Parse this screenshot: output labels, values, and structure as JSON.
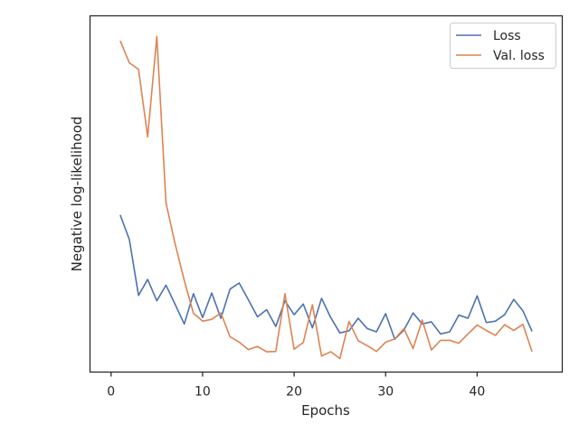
{
  "chart_data": {
    "type": "line",
    "title": "",
    "xlabel": "Epochs",
    "ylabel": "Negative log-likelihood",
    "xlim": [
      -2.3,
      49.3
    ],
    "ylim": [
      0,
      1
    ],
    "xticks": [
      0,
      10,
      20,
      30,
      40
    ],
    "yticks": [],
    "grid": false,
    "legend_position": "top-right",
    "x": [
      1,
      2,
      3,
      4,
      5,
      6,
      7,
      8,
      9,
      10,
      11,
      12,
      13,
      14,
      15,
      16,
      17,
      18,
      19,
      20,
      21,
      22,
      23,
      24,
      25,
      26,
      27,
      28,
      29,
      30,
      31,
      32,
      33,
      34,
      35,
      36,
      37,
      38,
      39,
      40,
      41,
      42,
      43,
      44,
      45,
      46
    ],
    "series": [
      {
        "name": "Loss",
        "color": "#4c72b0",
        "values": [
          0.441,
          0.372,
          0.215,
          0.26,
          0.2,
          0.244,
          0.19,
          0.135,
          0.22,
          0.153,
          0.222,
          0.151,
          0.233,
          0.25,
          0.203,
          0.155,
          0.175,
          0.128,
          0.2,
          0.161,
          0.191,
          0.124,
          0.207,
          0.153,
          0.11,
          0.116,
          0.151,
          0.122,
          0.113,
          0.164,
          0.092,
          0.118,
          0.166,
          0.135,
          0.141,
          0.107,
          0.113,
          0.16,
          0.151,
          0.214,
          0.139,
          0.143,
          0.161,
          0.204,
          0.172,
          0.114
        ]
      },
      {
        "name": "Val. loss",
        "color": "#dd8452",
        "values": [
          0.93,
          0.868,
          0.85,
          0.66,
          0.942,
          0.475,
          0.36,
          0.257,
          0.165,
          0.143,
          0.148,
          0.166,
          0.099,
          0.084,
          0.063,
          0.072,
          0.057,
          0.058,
          0.22,
          0.064,
          0.083,
          0.189,
          0.045,
          0.057,
          0.038,
          0.142,
          0.088,
          0.074,
          0.058,
          0.084,
          0.093,
          0.122,
          0.066,
          0.146,
          0.062,
          0.089,
          0.089,
          0.081,
          0.107,
          0.132,
          0.117,
          0.103,
          0.133,
          0.117,
          0.134,
          0.057
        ]
      }
    ]
  }
}
